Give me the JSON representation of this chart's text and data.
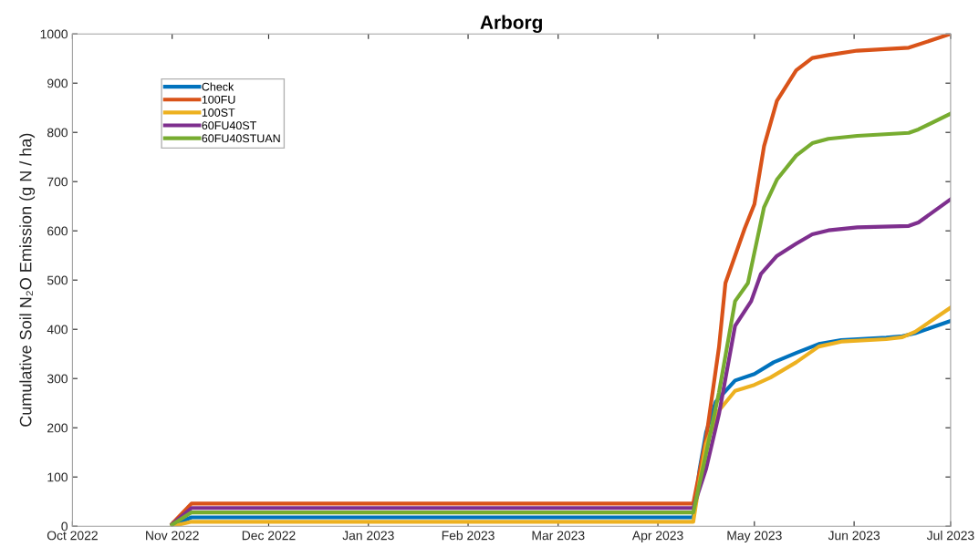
{
  "chart_data": {
    "type": "line",
    "title": "Arborg",
    "ylabel": "Cumulative Soil N₂O Emission (g N / ha)",
    "xlim": [
      "2022-10-01",
      "2023-07-01"
    ],
    "xticks": [
      {
        "value": "2022-10-01",
        "label": "Oct 2022"
      },
      {
        "value": "2022-11-01",
        "label": "Nov 2022"
      },
      {
        "value": "2022-12-01",
        "label": "Dec 2022"
      },
      {
        "value": "2023-01-01",
        "label": "Jan 2023"
      },
      {
        "value": "2023-02-01",
        "label": "Feb 2023"
      },
      {
        "value": "2023-03-01",
        "label": "Mar 2023"
      },
      {
        "value": "2023-04-01",
        "label": "Apr 2023"
      },
      {
        "value": "2023-05-01",
        "label": "May 2023"
      },
      {
        "value": "2023-06-01",
        "label": "Jun 2023"
      },
      {
        "value": "2023-07-01",
        "label": "Jul 2023"
      }
    ],
    "ylim": [
      0,
      1000
    ],
    "yticks": [
      0,
      100,
      200,
      300,
      400,
      500,
      600,
      700,
      800,
      900,
      1000
    ],
    "grid": false,
    "legend": "top left",
    "marker": "none",
    "line_style": "solid",
    "series": [
      {
        "name": "Check",
        "color": "#0072bd",
        "x": [
          "2022-11-01",
          "2022-11-07",
          "2023-04-12",
          "2023-04-14",
          "2023-04-16",
          "2023-04-19",
          "2023-04-25",
          "2023-05-01",
          "2023-05-07",
          "2023-05-14",
          "2023-05-21",
          "2023-05-28",
          "2023-06-11",
          "2023-06-16",
          "2023-06-20",
          "2023-07-01"
        ],
        "values": [
          2,
          18,
          18,
          117,
          191,
          253,
          296,
          309,
          333,
          352,
          370,
          378,
          383,
          386,
          392,
          417
        ]
      },
      {
        "name": "100FU",
        "color": "#d95319",
        "x": [
          "2022-11-01",
          "2022-11-07",
          "2023-04-12",
          "2023-04-16",
          "2023-04-20",
          "2023-04-22",
          "2023-04-28",
          "2023-05-01",
          "2023-05-04",
          "2023-05-08",
          "2023-05-14",
          "2023-05-19",
          "2023-05-24",
          "2023-06-02",
          "2023-06-18",
          "2023-07-01"
        ],
        "values": [
          5,
          46,
          46,
          179,
          364,
          494,
          605,
          654,
          772,
          864,
          926,
          951,
          957,
          966,
          972,
          1000
        ]
      },
      {
        "name": "100ST",
        "color": "#edb120",
        "x": [
          "2022-11-01",
          "2022-11-07",
          "2023-04-12",
          "2023-04-14",
          "2023-04-16",
          "2023-04-20",
          "2023-04-25",
          "2023-05-01",
          "2023-05-06",
          "2023-05-14",
          "2023-05-21",
          "2023-05-28",
          "2023-06-11",
          "2023-06-16",
          "2023-06-20",
          "2023-07-01"
        ],
        "values": [
          0,
          9,
          9,
          93,
          167,
          235,
          275,
          287,
          302,
          333,
          365,
          375,
          380,
          384,
          395,
          444
        ]
      },
      {
        "name": "60FU40ST",
        "color": "#7e2f8e",
        "x": [
          "2022-11-01",
          "2022-11-07",
          "2023-04-12",
          "2023-04-16",
          "2023-04-20",
          "2023-04-25",
          "2023-04-30",
          "2023-05-03",
          "2023-05-08",
          "2023-05-14",
          "2023-05-19",
          "2023-05-24",
          "2023-06-02",
          "2023-06-18",
          "2023-06-21",
          "2023-07-01"
        ],
        "values": [
          4,
          37,
          37,
          117,
          228,
          407,
          457,
          512,
          549,
          574,
          593,
          601,
          607,
          610,
          617,
          664
        ]
      },
      {
        "name": "60FU40STUAN",
        "color": "#77ac30",
        "x": [
          "2022-11-01",
          "2022-11-07",
          "2023-04-12",
          "2023-04-16",
          "2023-04-20",
          "2023-04-25",
          "2023-04-29",
          "2023-05-04",
          "2023-05-08",
          "2023-05-14",
          "2023-05-19",
          "2023-05-24",
          "2023-06-02",
          "2023-06-18",
          "2023-06-21",
          "2023-07-01"
        ],
        "values": [
          3,
          28,
          28,
          148,
          272,
          457,
          494,
          648,
          704,
          753,
          778,
          787,
          793,
          799,
          806,
          838
        ]
      }
    ]
  }
}
